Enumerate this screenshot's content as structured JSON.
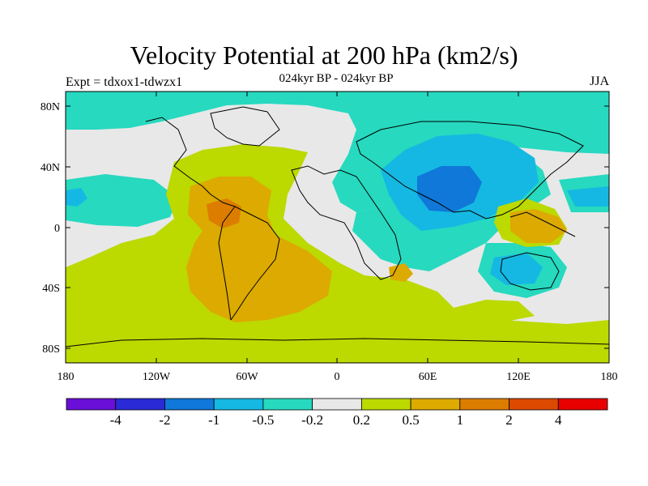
{
  "header": {
    "title": "Velocity Potential at 200 hPa (km2/s)",
    "subtitle": "024kyr BP - 024kyr BP",
    "experiment": "Expt = tdxox1-tdwzx1",
    "season": "JJA"
  },
  "axes": {
    "lat_labels": [
      "80N",
      "40N",
      "0",
      "40S",
      "80S"
    ],
    "lon_labels": [
      "180",
      "120W",
      "60W",
      "0",
      "60E",
      "120E",
      "180"
    ]
  },
  "colorbar": {
    "colors": [
      "#6a0fd8",
      "#2a2ad6",
      "#0f78d8",
      "#15b8e2",
      "#26d9bf",
      "#e8e8e8",
      "#bcd900",
      "#dcaa00",
      "#dc7d00",
      "#dc4a00",
      "#e80000"
    ],
    "labels": [
      "-4",
      "-2",
      "-1",
      "-0.5",
      "-0.2",
      "0.2",
      "0.5",
      "1",
      "2",
      "4"
    ]
  }
}
